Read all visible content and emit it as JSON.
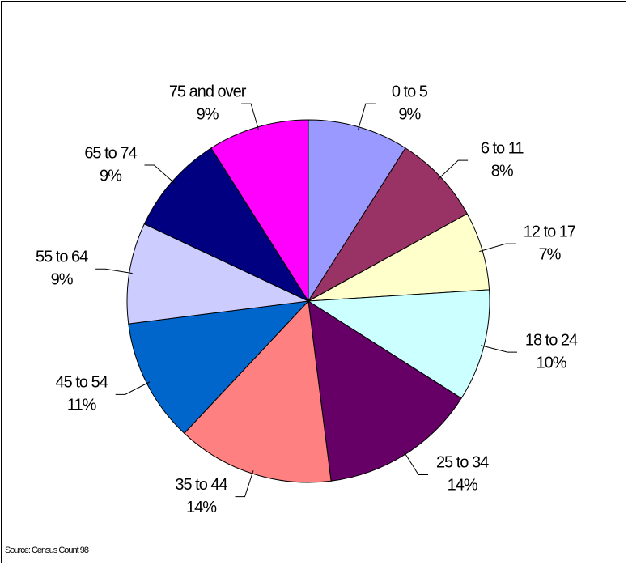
{
  "chart_data": {
    "type": "pie",
    "categories": [
      "0 to 5",
      "6 to 11",
      "12 to 17",
      "18 to 24",
      "25 to 34",
      "35 to 44",
      "45 to 54",
      "55 to 64",
      "65 to 74",
      "75 and over"
    ],
    "values": [
      9,
      8,
      7,
      10,
      14,
      14,
      11,
      9,
      9,
      9
    ],
    "value_labels": [
      "9%",
      "8%",
      "7%",
      "10%",
      "14%",
      "14%",
      "11%",
      "9%",
      "9%",
      "9%"
    ],
    "colors": [
      "#9999ff",
      "#993366",
      "#ffffcc",
      "#ccffff",
      "#660066",
      "#ff8080",
      "#0066cc",
      "#ccccff",
      "#000080",
      "#ff00ff"
    ],
    "source": "Source: Census Count 98"
  }
}
